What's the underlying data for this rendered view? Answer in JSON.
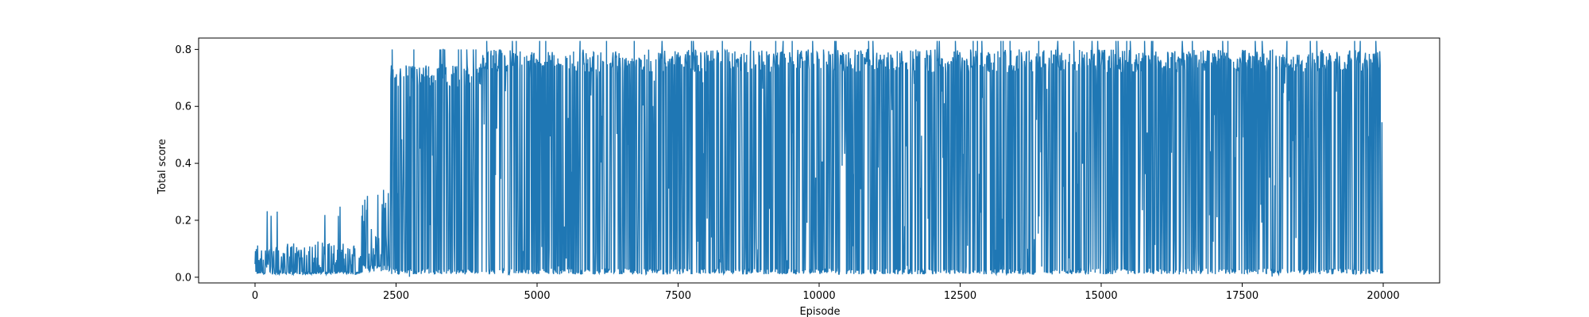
{
  "chart_data": {
    "type": "line",
    "title": "",
    "xlabel": "Episode",
    "ylabel": "Total score",
    "xlim": [
      -1000,
      21000
    ],
    "ylim": [
      -0.02,
      0.84
    ],
    "x_ticks": [
      0,
      2500,
      5000,
      7500,
      10000,
      12500,
      15000,
      17500,
      20000
    ],
    "x_tick_labels": [
      "0",
      "2500",
      "5000",
      "7500",
      "10000",
      "12500",
      "15000",
      "17500",
      "20000"
    ],
    "y_ticks": [
      0.0,
      0.2,
      0.4,
      0.6,
      0.8
    ],
    "y_tick_labels": [
      "0.0",
      "0.2",
      "0.4",
      "0.6",
      "0.8"
    ],
    "grid": false,
    "colors": {
      "series": "#1f77b4",
      "axes": "#000000",
      "background": "#ffffff"
    },
    "series": [
      {
        "name": "Total score",
        "episode_range": [
          0,
          20000
        ],
        "description_of_shape": "noisy per-episode score",
        "phases": [
          {
            "from": 0,
            "to": 1900,
            "baseline": 0.01,
            "typical_peak": 0.12,
            "max_peak": 0.25
          },
          {
            "from": 1900,
            "to": 2400,
            "baseline": 0.02,
            "typical_peak": 0.3,
            "max_peak": 0.35
          },
          {
            "from": 2400,
            "to": 4000,
            "baseline": 0.01,
            "typical_peak": 0.75,
            "max_peak": 0.8
          },
          {
            "from": 4000,
            "to": 20000,
            "baseline": 0.01,
            "typical_peak": 0.8,
            "max_peak": 0.83
          }
        ]
      }
    ]
  }
}
